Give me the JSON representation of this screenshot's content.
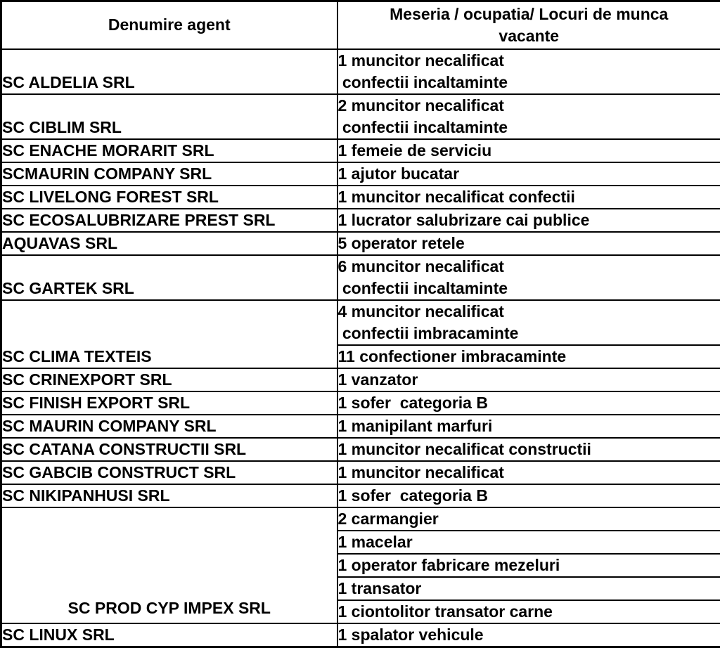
{
  "page": {
    "type": "job-vacancy-table",
    "background_color": "#ffffff",
    "border_color": "#000000",
    "text_color": "#000000"
  },
  "table": {
    "headers": [
      "Denumire agent",
      "Meseria / ocupatia/ Locuri de munca\nvacante"
    ],
    "rows": [
      {
        "agent": "SC ALDELIA SRL",
        "jobs": [
          "1 muncitor necalificat\n confectii incaltaminte"
        ]
      },
      {
        "agent": "SC CIBLIM SRL",
        "jobs": [
          "2 muncitor necalificat\n confectii incaltaminte"
        ]
      },
      {
        "agent": "SC ENACHE MORARIT SRL",
        "jobs": [
          "1 femeie de serviciu"
        ]
      },
      {
        "agent": "SCMAURIN COMPANY SRL",
        "jobs": [
          "1 ajutor bucatar"
        ]
      },
      {
        "agent": "SC LIVELONG FOREST SRL",
        "jobs": [
          "1 muncitor necalificat confectii"
        ]
      },
      {
        "agent": "SC ECOSALUBRIZARE PREST SRL",
        "jobs": [
          "1 lucrator salubrizare cai publice"
        ]
      },
      {
        "agent": "AQUAVAS SRL",
        "jobs": [
          "5 operator retele"
        ]
      },
      {
        "agent": "SC GARTEK SRL",
        "jobs": [
          "6 muncitor necalificat\n confectii incaltaminte"
        ]
      },
      {
        "agent": "SC CLIMA TEXTEIS",
        "jobs": [
          "4 muncitor necalificat\n confectii imbracaminte",
          "11 confectioner imbracaminte"
        ]
      },
      {
        "agent": "SC CRINEXPORT SRL",
        "jobs": [
          "1 vanzator"
        ]
      },
      {
        "agent": "SC FINISH EXPORT SRL",
        "jobs": [
          "1 sofer  categoria B"
        ]
      },
      {
        "agent": "SC MAURIN COMPANY SRL",
        "jobs": [
          "1 manipilant marfuri"
        ]
      },
      {
        "agent": "SC CATANA CONSTRUCTII SRL",
        "jobs": [
          "1 muncitor necalificat constructii"
        ]
      },
      {
        "agent": "SC GABCIB CONSTRUCT SRL",
        "jobs": [
          "1 muncitor necalificat"
        ]
      },
      {
        "agent": "SC NIKIPANHUSI SRL",
        "jobs": [
          "1 sofer  categoria B"
        ]
      },
      {
        "agent": "SC PROD CYP IMPEX SRL",
        "jobs": [
          "2 carmangier",
          "1 macelar",
          "1 operator fabricare mezeluri",
          "1 transator",
          "1 ciontolitor transator carne"
        ]
      },
      {
        "agent": "SC LINUX SRL",
        "jobs": [
          "1 spalator vehicule"
        ]
      }
    ]
  }
}
